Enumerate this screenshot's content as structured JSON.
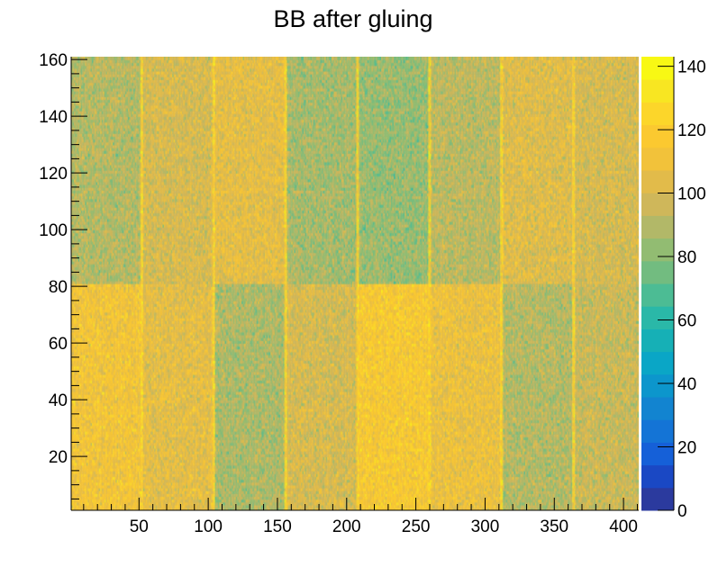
{
  "chart_data": {
    "type": "heatmap",
    "title": "BB after gluing",
    "xlabel": "",
    "ylabel": "",
    "xlim": [
      1,
      411
    ],
    "ylim": [
      1,
      161
    ],
    "zlim": [
      0,
      143
    ],
    "x_ticks": [
      50,
      100,
      150,
      200,
      250,
      300,
      350,
      400
    ],
    "y_ticks": [
      20,
      40,
      60,
      80,
      100,
      120,
      140,
      160
    ],
    "z_ticks": [
      0,
      20,
      40,
      60,
      80,
      100,
      120,
      140
    ],
    "x_block_edges": [
      1,
      52,
      104,
      156,
      208,
      260,
      312,
      364,
      411
    ],
    "y_block_edges": [
      1,
      81,
      161
    ],
    "block_means": [
      [
        112,
        105,
        88,
        100,
        115,
        108,
        90,
        95
      ],
      [
        90,
        100,
        105,
        86,
        84,
        92,
        102,
        100
      ]
    ],
    "boundary_line_value": 122,
    "palette": [
      "#2b3a9e",
      "#1a48c4",
      "#1560d8",
      "#1474d6",
      "#1284d0",
      "#0c96cc",
      "#0aa6c6",
      "#16b0b6",
      "#2ab8a8",
      "#4cbc94",
      "#72bc80",
      "#92bc72",
      "#b2b868",
      "#cfb75a",
      "#e2bb4a",
      "#f2c23a",
      "#fbc930",
      "#fcd62a",
      "#f8e622",
      "#f8f814"
    ]
  }
}
